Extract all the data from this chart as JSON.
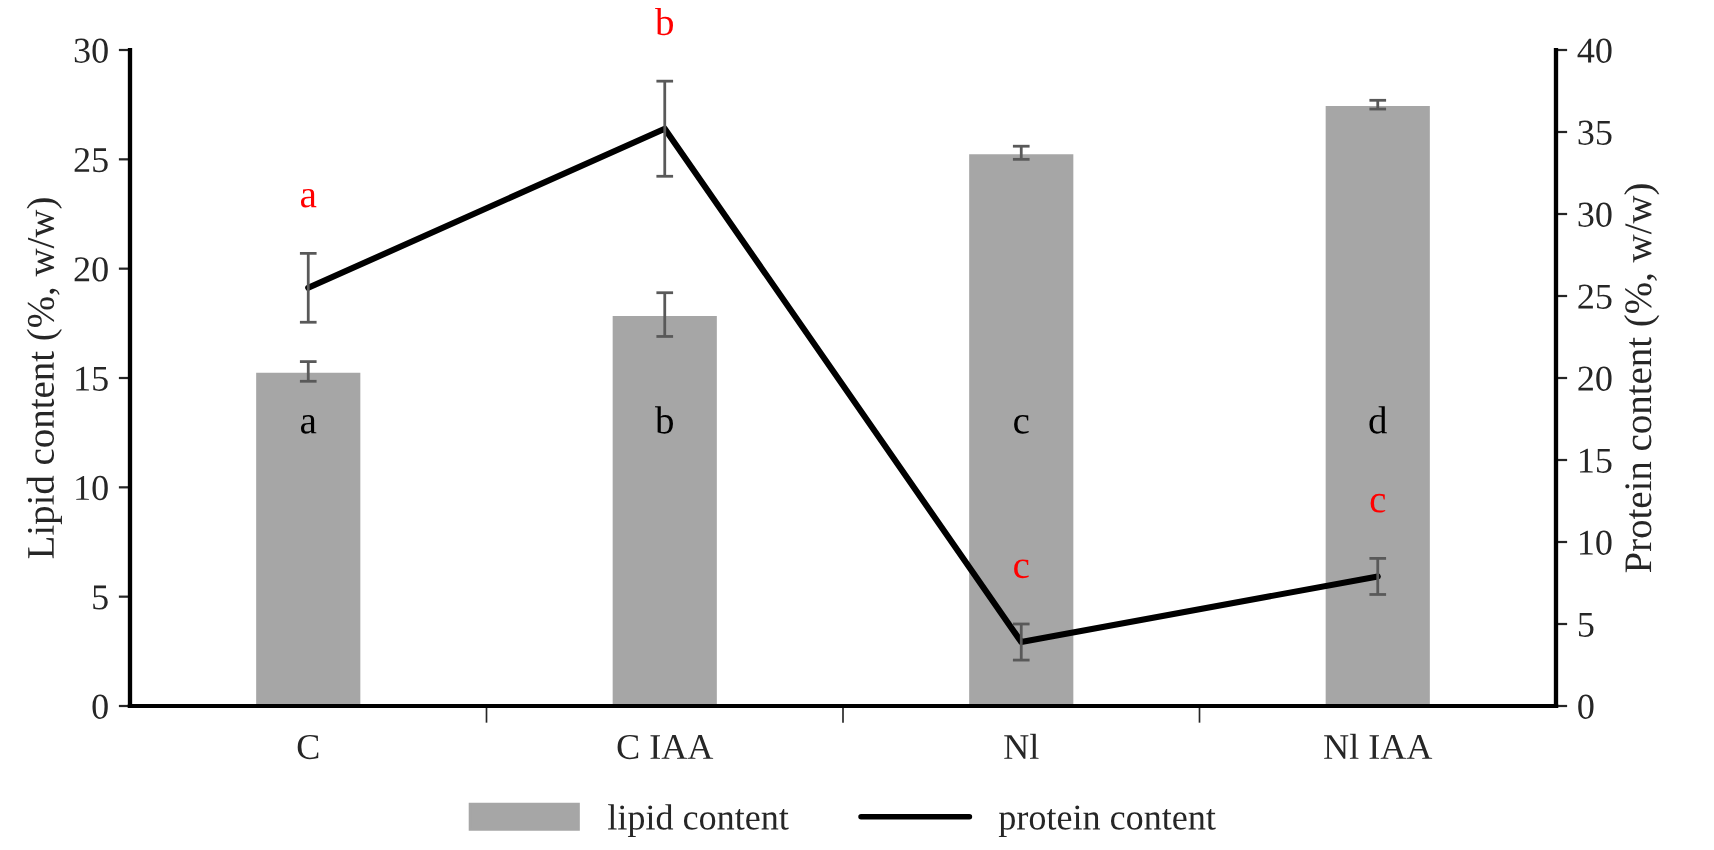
{
  "chart_data": {
    "type": "bar",
    "categories": [
      "C",
      "C IAA",
      "Nl",
      "Nl IAA"
    ],
    "ylabel": "Lipid content (%, w/w)",
    "y2label": "Protein content (%, w/w)",
    "ylim": [
      0,
      30
    ],
    "yticks": [
      0,
      5,
      10,
      15,
      20,
      25,
      30
    ],
    "y2lim": [
      0,
      40
    ],
    "y2ticks": [
      0,
      5,
      10,
      15,
      20,
      25,
      30,
      35,
      40
    ],
    "series": [
      {
        "name": "lipid content",
        "color": "#a6a6a6",
        "values": [
          15.3,
          17.9,
          25.3,
          27.5
        ],
        "errors": [
          0.45,
          1.0,
          0.3,
          0.2
        ],
        "value_labels": [
          "a",
          "b",
          "c",
          "d"
        ]
      },
      {
        "name": "protein content",
        "type": "line",
        "axis": "y2",
        "color": "#000000",
        "values": [
          25.5,
          35.2,
          3.9,
          7.9
        ],
        "errors": [
          2.1,
          2.9,
          1.1,
          1.1
        ],
        "value_labels": [
          "a",
          "b",
          "c",
          "c"
        ]
      }
    ],
    "legend": "bottom",
    "grid": false
  }
}
